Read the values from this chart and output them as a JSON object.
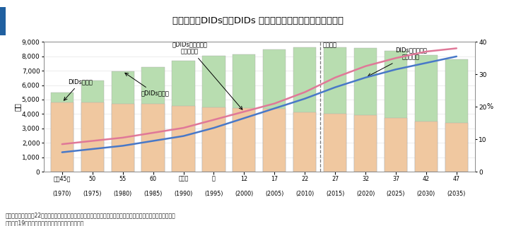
{
  "title": "図４－６　DIDs・非DIDs の人口と高齢化率の推移と見通し",
  "years_label_top": [
    "昭和45年",
    "50",
    "55",
    "60",
    "平成２",
    "７",
    "12",
    "17",
    "22",
    "27",
    "32",
    "37",
    "42",
    "47"
  ],
  "years_label_bot": [
    "(1970)",
    "(1975)",
    "(1980)",
    "(1985)",
    "(1990)",
    "(1995)",
    "(2000)",
    "(2005)",
    "(2010)",
    "(2015)",
    "(2020)",
    "(2025)",
    "(2030)",
    "(2035)"
  ],
  "years": [
    1970,
    1975,
    1980,
    1985,
    1990,
    1995,
    2000,
    2005,
    2010,
    2015,
    2020,
    2025,
    2030,
    2035
  ],
  "nondids_pop": [
    5500,
    6300,
    6950,
    7250,
    7700,
    8050,
    8150,
    8450,
    8600,
    8600,
    8550,
    8350,
    8100,
    7800
  ],
  "dids_pop": [
    4800,
    4800,
    4700,
    4700,
    4550,
    4450,
    4400,
    4350,
    4100,
    4000,
    3900,
    3750,
    3500,
    3400
  ],
  "nondids_aging": [
    8.5,
    9.5,
    10.5,
    12.0,
    13.5,
    16.0,
    18.5,
    21.0,
    24.5,
    29.0,
    32.5,
    35.0,
    37.0,
    38.0
  ],
  "dids_aging": [
    6.0,
    7.0,
    8.0,
    9.5,
    11.0,
    13.5,
    16.5,
    19.5,
    22.5,
    26.0,
    29.0,
    31.5,
    33.5,
    35.5
  ],
  "forecast_split": 8.5,
  "bar_color_green": "#b8ddb0",
  "bar_color_orange": "#f0c8a0",
  "line_color_pink": "#e07898",
  "line_color_blue": "#4878c8",
  "ylabel_left": "万人",
  "ylabel_right": "%",
  "ylim_left": [
    0,
    9000
  ],
  "ylim_right": [
    0,
    40
  ],
  "yticks_left": [
    0,
    1000,
    2000,
    3000,
    4000,
    5000,
    6000,
    7000,
    8000,
    9000
  ],
  "yticks_right": [
    0,
    10,
    20,
    30,
    40
  ],
  "bg_color": "#ffffff",
  "title_bg": "#d4ecf7",
  "title_stripe": "#2060a0",
  "footer": "資料：総務省「平成22年　国勢調査人口等基本集計」、国立社会保障・人口問題研究所「都道府県の将来人口推計\n　（平成19年５月推計）」を基に農林水産省で推計",
  "ann_dids_pop": "DIDsの人口",
  "ann_nondids_pop": "非DIDsの人口",
  "ann_nondids_aging": "非DIDsの高齢化率\n（右目盛）",
  "ann_dids_aging": "DIDsの高齢化率\n（右目盛）",
  "ann_forecast": "（推計）"
}
